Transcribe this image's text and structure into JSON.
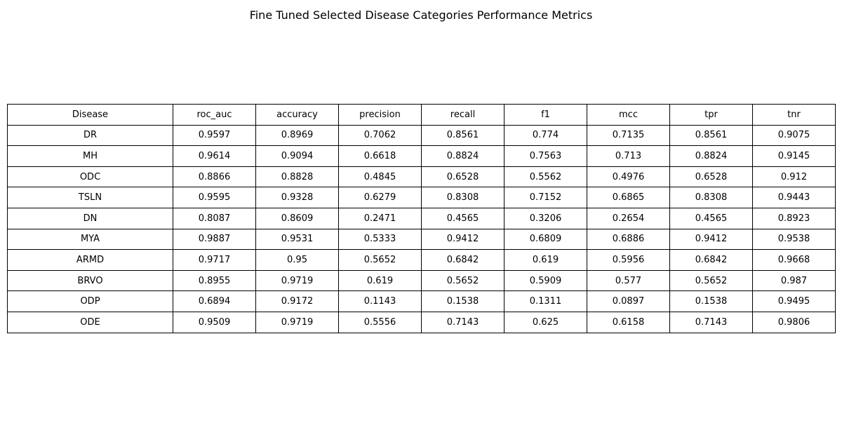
{
  "chart_data": {
    "type": "table",
    "title": "Fine Tuned Selected Disease Categories Performance Metrics",
    "columns": [
      "Disease",
      "roc_auc",
      "accuracy",
      "precision",
      "recall",
      "f1",
      "mcc",
      "tpr",
      "tnr"
    ],
    "rows": [
      [
        "DR",
        "0.9597",
        "0.8969",
        "0.7062",
        "0.8561",
        "0.774",
        "0.7135",
        "0.8561",
        "0.9075"
      ],
      [
        "MH",
        "0.9614",
        "0.9094",
        "0.6618",
        "0.8824",
        "0.7563",
        "0.713",
        "0.8824",
        "0.9145"
      ],
      [
        "ODC",
        "0.8866",
        "0.8828",
        "0.4845",
        "0.6528",
        "0.5562",
        "0.4976",
        "0.6528",
        "0.912"
      ],
      [
        "TSLN",
        "0.9595",
        "0.9328",
        "0.6279",
        "0.8308",
        "0.7152",
        "0.6865",
        "0.8308",
        "0.9443"
      ],
      [
        "DN",
        "0.8087",
        "0.8609",
        "0.2471",
        "0.4565",
        "0.3206",
        "0.2654",
        "0.4565",
        "0.8923"
      ],
      [
        "MYA",
        "0.9887",
        "0.9531",
        "0.5333",
        "0.9412",
        "0.6809",
        "0.6886",
        "0.9412",
        "0.9538"
      ],
      [
        "ARMD",
        "0.9717",
        "0.95",
        "0.5652",
        "0.6842",
        "0.619",
        "0.5956",
        "0.6842",
        "0.9668"
      ],
      [
        "BRVO",
        "0.8955",
        "0.9719",
        "0.619",
        "0.5652",
        "0.5909",
        "0.577",
        "0.5652",
        "0.987"
      ],
      [
        "ODP",
        "0.6894",
        "0.9172",
        "0.1143",
        "0.1538",
        "0.1311",
        "0.0897",
        "0.1538",
        "0.9495"
      ],
      [
        "ODE",
        "0.9509",
        "0.9719",
        "0.5556",
        "0.7143",
        "0.625",
        "0.6158",
        "0.7143",
        "0.9806"
      ]
    ]
  }
}
